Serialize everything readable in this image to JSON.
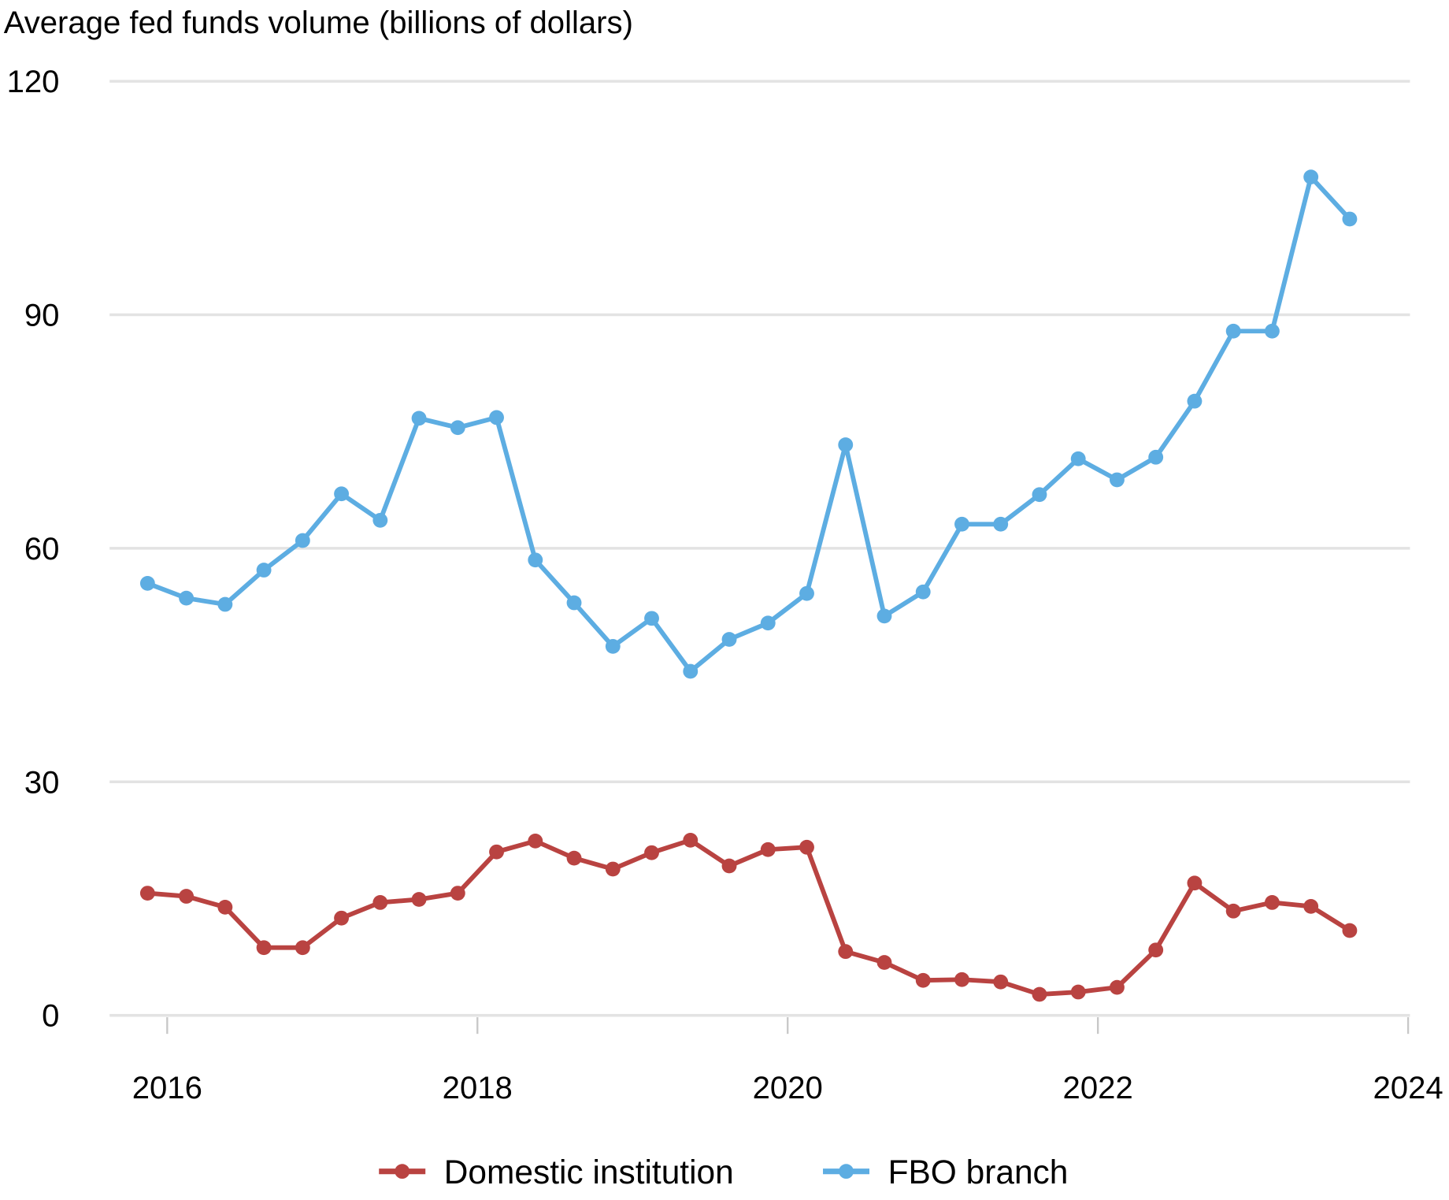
{
  "chart_data": {
    "type": "line",
    "title": "Average fed funds volume (billions of dollars)",
    "xlabel": "",
    "ylabel": "",
    "ylim": [
      0,
      120
    ],
    "xlim": [
      2016,
      2024
    ],
    "yticks": [
      "0",
      "30",
      "60",
      "90",
      "120"
    ],
    "xticks": [
      "2016",
      "2018",
      "2020",
      "2022",
      "2024"
    ],
    "grid": "horizontal",
    "legend_position": "bottom",
    "x": [
      "2015-11",
      "2016-02",
      "2016-05",
      "2016-08",
      "2016-11",
      "2017-02",
      "2017-05",
      "2017-08",
      "2017-11",
      "2018-02",
      "2018-05",
      "2018-08",
      "2018-11",
      "2019-02",
      "2019-05",
      "2019-08",
      "2019-11",
      "2020-02",
      "2020-05",
      "2020-08",
      "2020-11",
      "2021-02",
      "2021-05",
      "2021-08",
      "2021-11",
      "2022-02",
      "2022-05",
      "2022-08",
      "2022-11",
      "2023-02",
      "2023-05",
      "2023-08"
    ],
    "series": [
      {
        "name": "Domestic institution",
        "color": "#b94341",
        "values": [
          15.7,
          15.3,
          13.9,
          8.7,
          8.7,
          12.5,
          14.5,
          14.9,
          15.7,
          21.0,
          22.4,
          20.2,
          18.8,
          20.9,
          22.5,
          19.2,
          21.3,
          21.6,
          8.2,
          6.8,
          4.5,
          4.6,
          4.3,
          2.7,
          3.0,
          3.6,
          8.4,
          17.0,
          13.4,
          14.5,
          14.0,
          10.9
        ]
      },
      {
        "name": "FBO branch",
        "color": "#5dade2",
        "values": [
          55.5,
          53.6,
          52.8,
          57.2,
          61.0,
          67.0,
          63.6,
          76.7,
          75.5,
          76.8,
          58.5,
          53.0,
          47.4,
          51.0,
          44.2,
          48.3,
          50.4,
          54.2,
          73.3,
          51.3,
          54.4,
          63.1,
          63.1,
          66.9,
          71.5,
          68.8,
          71.7,
          78.9,
          87.9,
          87.9,
          107.7,
          102.3
        ]
      }
    ]
  }
}
